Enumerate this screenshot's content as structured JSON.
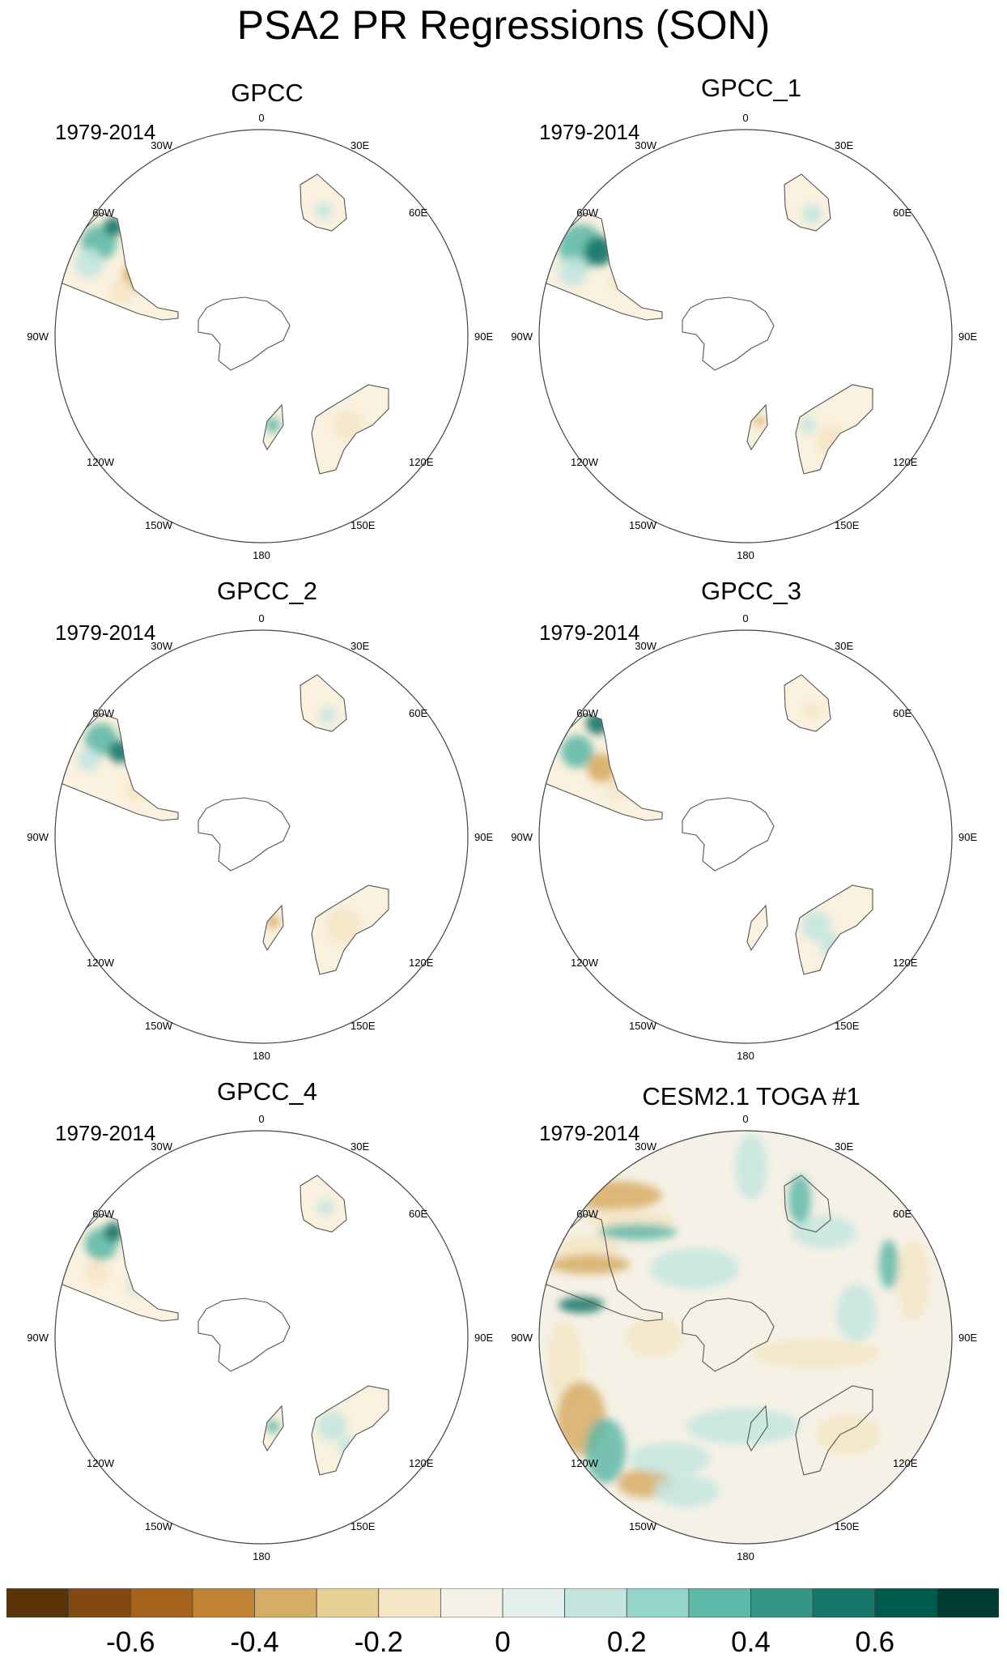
{
  "figure_title": "PSA2 PR Regressions (SON)",
  "panels": [
    {
      "title": "GPCC",
      "period": "1979-2014"
    },
    {
      "title": "GPCC_1",
      "period": "1979-2014"
    },
    {
      "title": "GPCC_2",
      "period": "1979-2014"
    },
    {
      "title": "GPCC_3",
      "period": "1979-2014"
    },
    {
      "title": "GPCC_4",
      "period": "1979-2014"
    },
    {
      "title": "CESM2.1 TOGA #1",
      "period": "1979-2014"
    }
  ],
  "longitude_labels": [
    "0",
    "30E",
    "60E",
    "90E",
    "120E",
    "150E",
    "180",
    "150W",
    "120W",
    "90W",
    "60W",
    "30W"
  ],
  "colorbar": {
    "colors": [
      "#5a3408",
      "#824a12",
      "#a5631d",
      "#c18433",
      "#d7ad65",
      "#e8cf96",
      "#f5e6c5",
      "#f5f1e6",
      "#e3f0ee",
      "#c3e6e0",
      "#93d5c8",
      "#5fb9a8",
      "#349686",
      "#15766a",
      "#005b4f",
      "#003c32"
    ],
    "tick_labels": [
      "-0.6",
      "-0.4",
      "-0.2",
      "0",
      "0.2",
      "0.4",
      "0.6"
    ]
  },
  "map_colors": {
    "brown": "#d7ad65",
    "light_brown": "#f5e6c5",
    "white_band": "#f5f1e6",
    "light_teal": "#c3e6e0",
    "teal": "#5fb9a8",
    "dark_teal": "#15766a",
    "coast": "#555555"
  },
  "projection": "south-polar-stereographic"
}
